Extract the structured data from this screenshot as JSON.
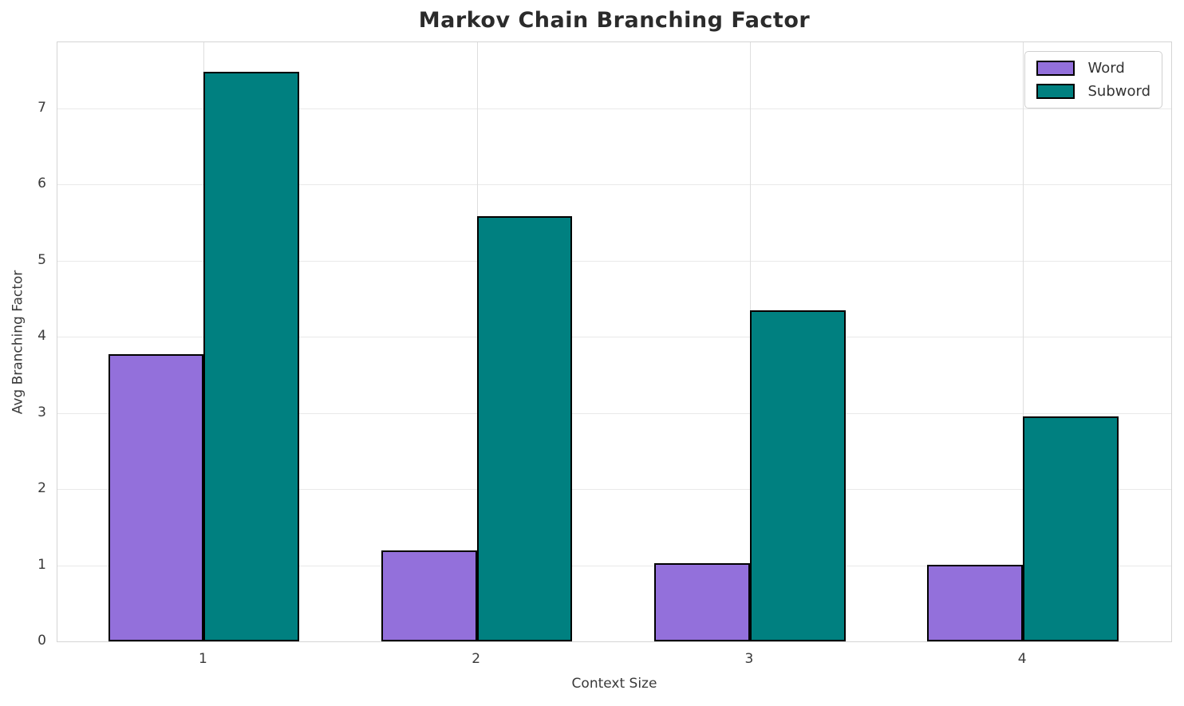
{
  "chart_data": {
    "type": "bar",
    "title": "Markov Chain Branching Factor",
    "xlabel": "Context Size",
    "ylabel": "Avg Branching Factor",
    "categories": [
      "1",
      "2",
      "3",
      "4"
    ],
    "series": [
      {
        "name": "Word",
        "color": "#9370DB",
        "values": [
          3.77,
          1.19,
          1.03,
          1.01
        ]
      },
      {
        "name": "Subword",
        "color": "#008080",
        "values": [
          7.48,
          5.59,
          4.35,
          2.95
        ]
      }
    ],
    "bar_edge_color": "#000000",
    "bar_width": 0.35,
    "ylim": [
      0,
      7.87
    ],
    "xlim": [
      -0.536,
      3.543
    ],
    "yticks": [
      0,
      1,
      2,
      3,
      4,
      5,
      6,
      7
    ],
    "grid": true,
    "legend_position": "upper right"
  }
}
